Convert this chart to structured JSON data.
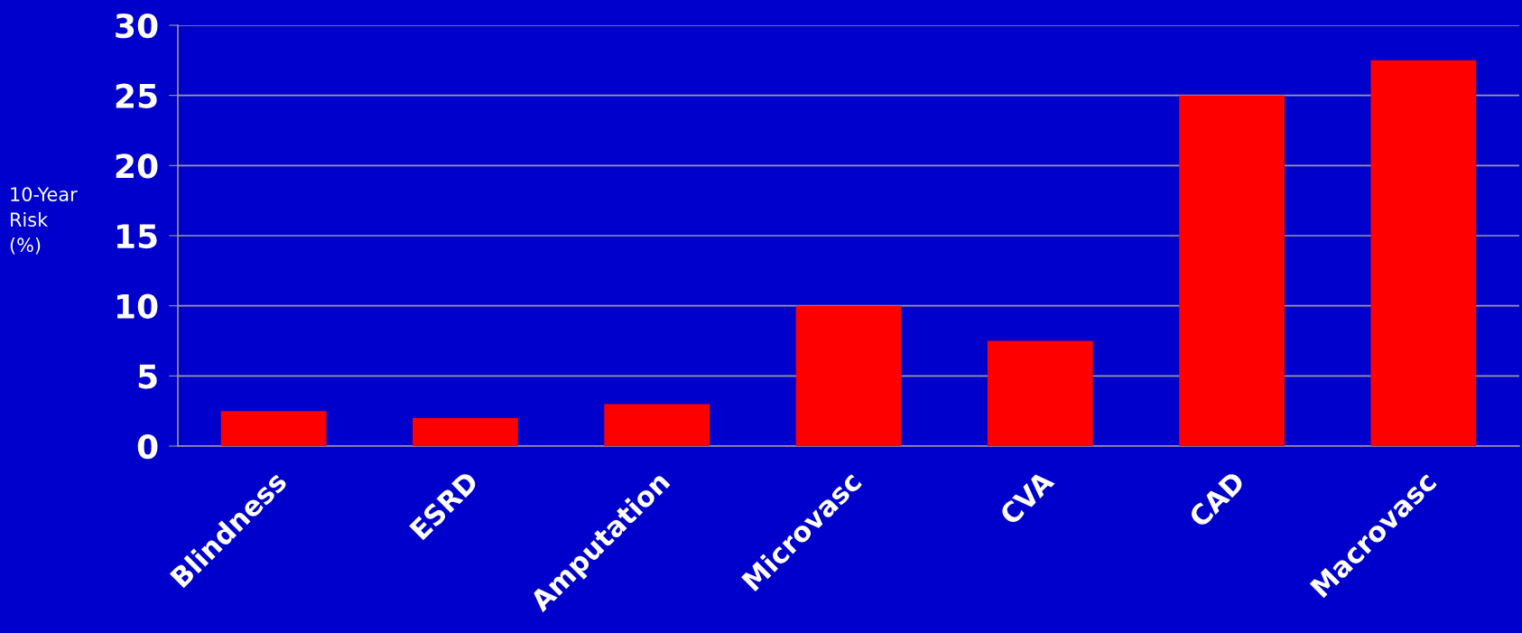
{
  "chart_data": {
    "type": "bar",
    "ylabel": "10-Year\nRisk\n(%)",
    "categories": [
      "Blindness",
      "ESRD",
      "Amputation",
      "Microvasc",
      "CVA",
      "CAD",
      "Macrovasc"
    ],
    "values": [
      2.5,
      2,
      3,
      10,
      7.5,
      25,
      27.5
    ],
    "color": "#ff0000",
    "ylim": [
      0,
      30
    ],
    "yticks": [
      0,
      5,
      10,
      15,
      20,
      25,
      30
    ],
    "grid": "y",
    "legend": false
  }
}
